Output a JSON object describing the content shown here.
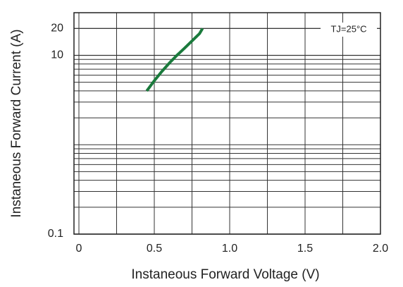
{
  "chart_data": {
    "type": "line",
    "annotation": "TJ=25°C",
    "x_label": "Instaneous Forward Voltage (V)",
    "y_label": "Instaneous Forward Current (A)",
    "xlim": [
      0,
      2
    ],
    "xticks": [
      0,
      {
        "value": 0.5,
        "label": "0.5"
      },
      {
        "value": 1,
        "label": "1.0"
      },
      {
        "value": 1.5,
        "label": "1.5"
      },
      {
        "value": 2,
        "label": "2.0"
      }
    ],
    "ylim": [
      0.1,
      30
    ],
    "yticks": [
      0.1,
      10,
      20
    ],
    "log_y": true,
    "grid": true,
    "x": [
      0.45,
      0.5,
      0.55,
      0.6,
      0.65,
      0.7,
      0.75,
      0.8,
      0.82
    ],
    "series": [
      {
        "color": "#1a7a3c",
        "values": [
          4,
          5.2,
          6.6,
          8.2,
          10,
          12,
          14.5,
          17.5,
          20
        ]
      }
    ]
  }
}
